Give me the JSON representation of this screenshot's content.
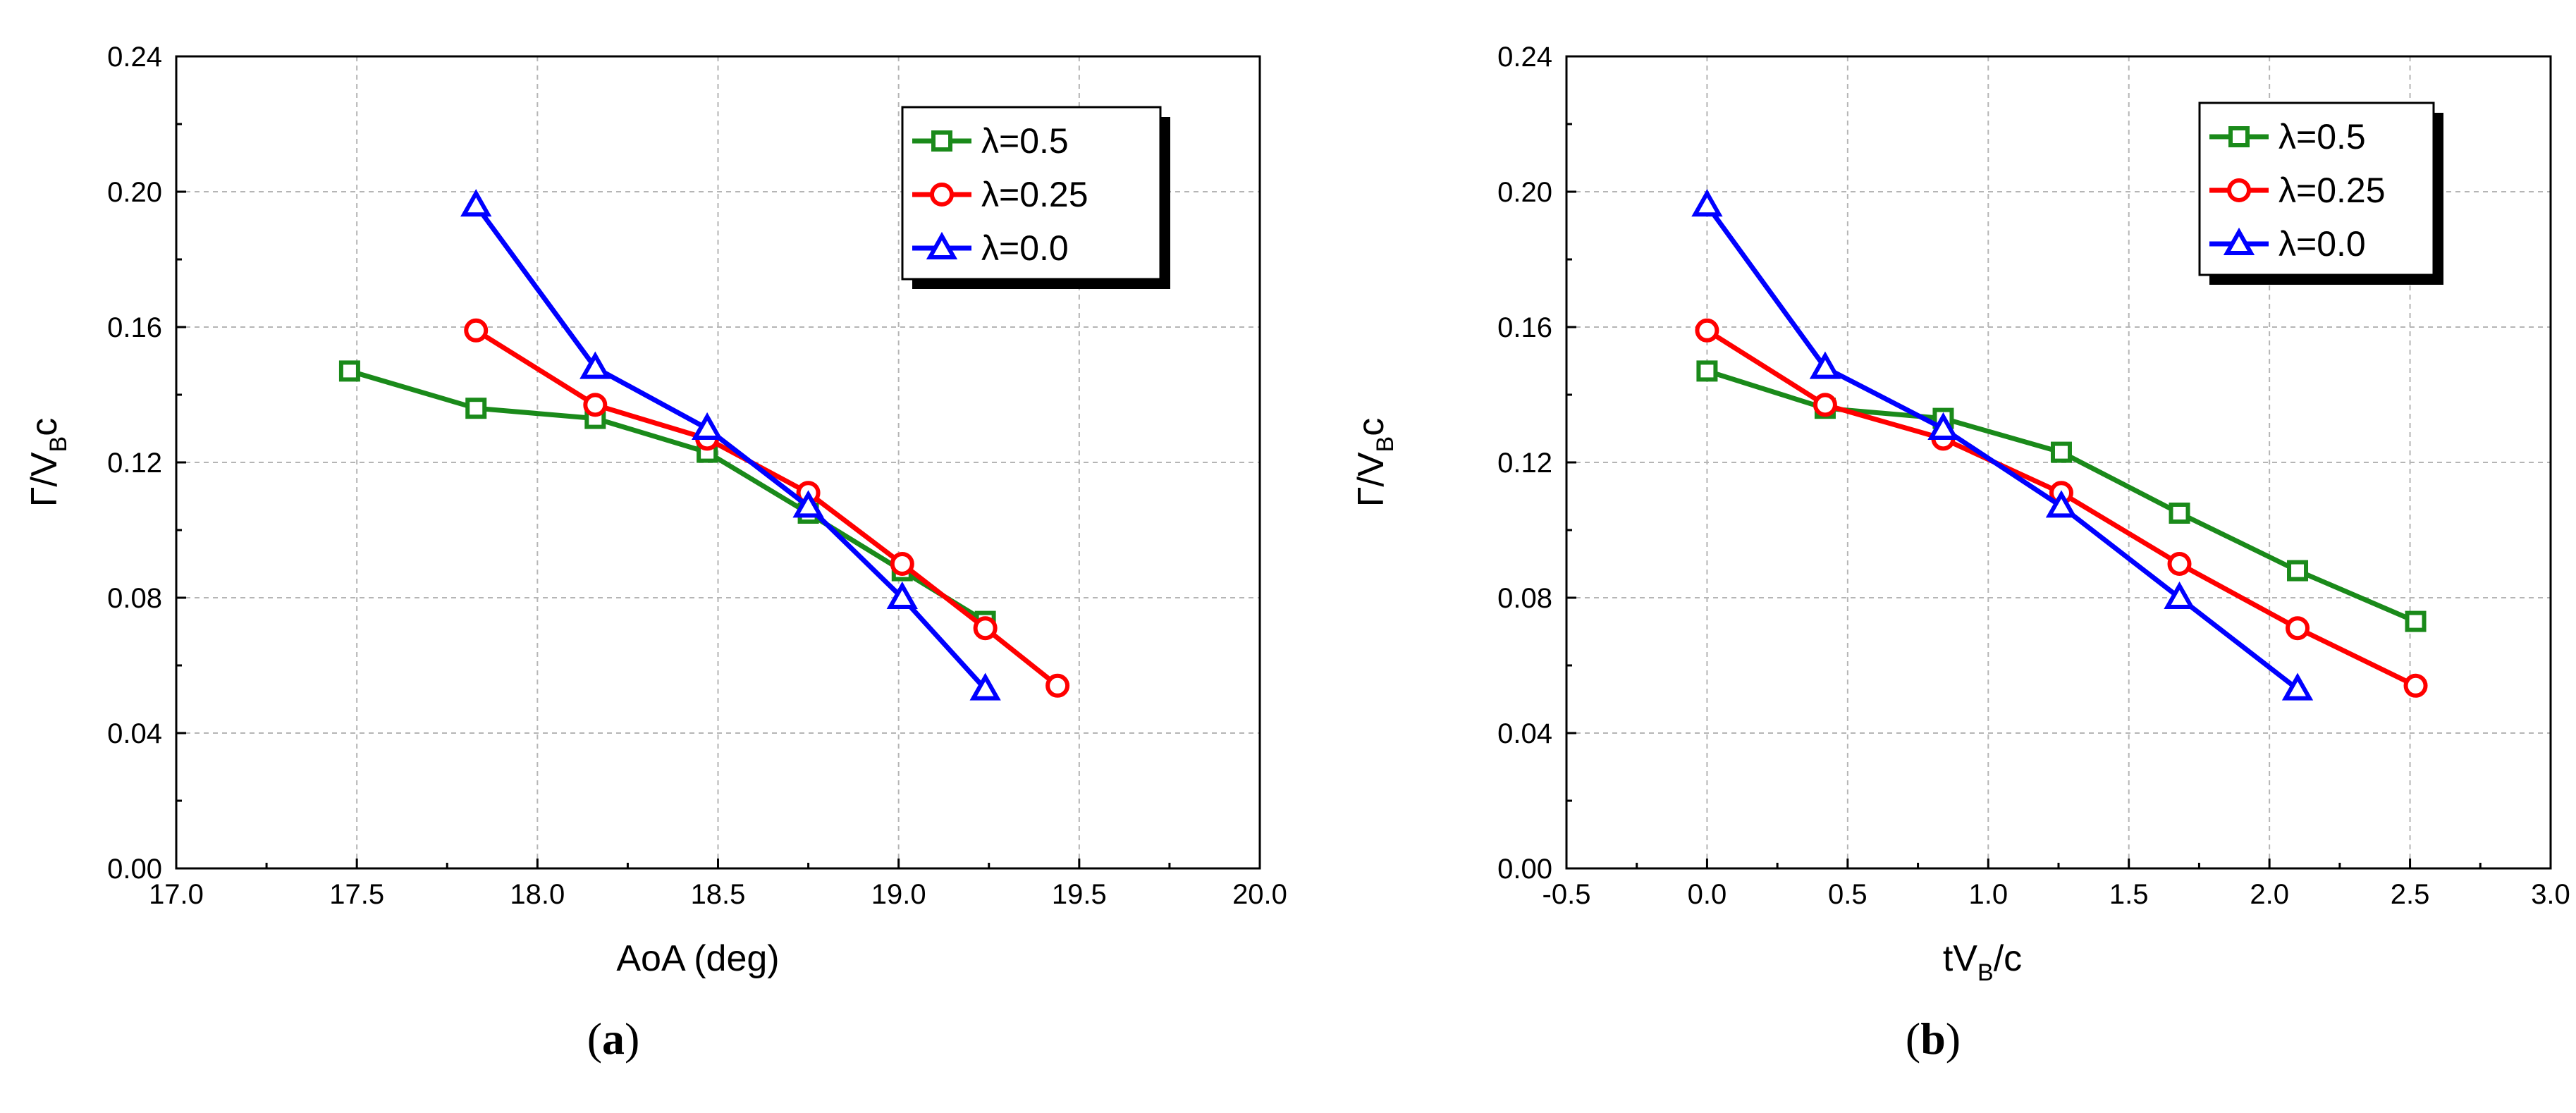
{
  "chart_data": [
    {
      "type": "line",
      "panel": "a",
      "caption": {
        "open": "(",
        "letter": "a",
        "close": ")"
      },
      "xlabel": "AoA (deg)",
      "ylabel": {
        "main": "Γ/V",
        "sub": "B",
        "tail": "c"
      },
      "xlim": [
        17.0,
        20.0
      ],
      "ylim": [
        0.0,
        0.24
      ],
      "xticks": [
        "17.0",
        "17.5",
        "18.0",
        "18.5",
        "19.0",
        "19.5",
        "20.0"
      ],
      "yticks": [
        "0.00",
        "0.04",
        "0.08",
        "0.12",
        "0.16",
        "0.20",
        "0.24"
      ],
      "grid": true,
      "legend_position": "top-right",
      "series": [
        {
          "name": "λ=0.5",
          "color": "#1a8a1a",
          "marker": "square",
          "x": [
            17.48,
            17.83,
            18.16,
            18.47,
            18.75,
            19.01,
            19.24
          ],
          "y": [
            0.147,
            0.136,
            0.133,
            0.123,
            0.105,
            0.088,
            0.073
          ]
        },
        {
          "name": "λ=0.25",
          "color": "#ff0000",
          "marker": "circle",
          "x": [
            17.83,
            18.16,
            18.47,
            18.75,
            19.01,
            19.24,
            19.44
          ],
          "y": [
            0.159,
            0.137,
            0.127,
            0.111,
            0.09,
            0.071,
            0.054
          ]
        },
        {
          "name": "λ=0.0",
          "color": "#0000ff",
          "marker": "triangle",
          "x": [
            17.83,
            18.16,
            18.47,
            18.75,
            19.01,
            19.24
          ],
          "y": [
            0.196,
            0.148,
            0.13,
            0.107,
            0.08,
            0.053
          ]
        }
      ]
    },
    {
      "type": "line",
      "panel": "b",
      "caption": {
        "open": "(",
        "letter": "b",
        "close": ")"
      },
      "xlabel": {
        "main": "tV",
        "sub": "B",
        "tail": "/c"
      },
      "ylabel": {
        "main": "Γ/V",
        "sub": "B",
        "tail": "c"
      },
      "xlim": [
        -0.5,
        3.0
      ],
      "ylim": [
        0.0,
        0.24
      ],
      "xticks": [
        "-0.5",
        "0.0",
        "0.5",
        "1.0",
        "1.5",
        "2.0",
        "2.5",
        "3.0"
      ],
      "yticks": [
        "0.00",
        "0.04",
        "0.08",
        "0.12",
        "0.16",
        "0.20",
        "0.24"
      ],
      "grid": true,
      "legend_position": "top-right",
      "series": [
        {
          "name": "λ=0.5",
          "color": "#1a8a1a",
          "marker": "square",
          "x": [
            0.0,
            0.42,
            0.84,
            1.26,
            1.68,
            2.1,
            2.52
          ],
          "y": [
            0.147,
            0.136,
            0.133,
            0.123,
            0.105,
            0.088,
            0.073
          ]
        },
        {
          "name": "λ=0.25",
          "color": "#ff0000",
          "marker": "circle",
          "x": [
            0.0,
            0.42,
            0.84,
            1.26,
            1.68,
            2.1,
            2.52
          ],
          "y": [
            0.159,
            0.137,
            0.127,
            0.111,
            0.09,
            0.071,
            0.054
          ]
        },
        {
          "name": "λ=0.0",
          "color": "#0000ff",
          "marker": "triangle",
          "x": [
            0.0,
            0.42,
            0.84,
            1.26,
            1.68,
            2.1
          ],
          "y": [
            0.196,
            0.148,
            0.13,
            0.107,
            0.08,
            0.053
          ]
        }
      ]
    }
  ]
}
